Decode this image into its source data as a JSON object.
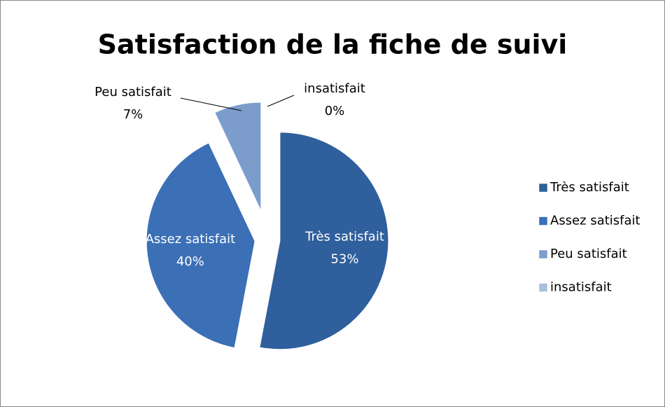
{
  "chart_data": {
    "type": "pie",
    "title": "Satisfaction de la fiche de suivi",
    "categories": [
      "Très satisfait",
      "Assez satisfait",
      "Peu satisfait",
      "insatisfait"
    ],
    "values": [
      53,
      40,
      7,
      0
    ],
    "value_labels": [
      "53%",
      "40%",
      "7%",
      "0%"
    ],
    "colors": [
      "#2f5f9c",
      "#3b6fb6",
      "#7c9dcc",
      "#a9bedd"
    ],
    "legend": "right"
  }
}
